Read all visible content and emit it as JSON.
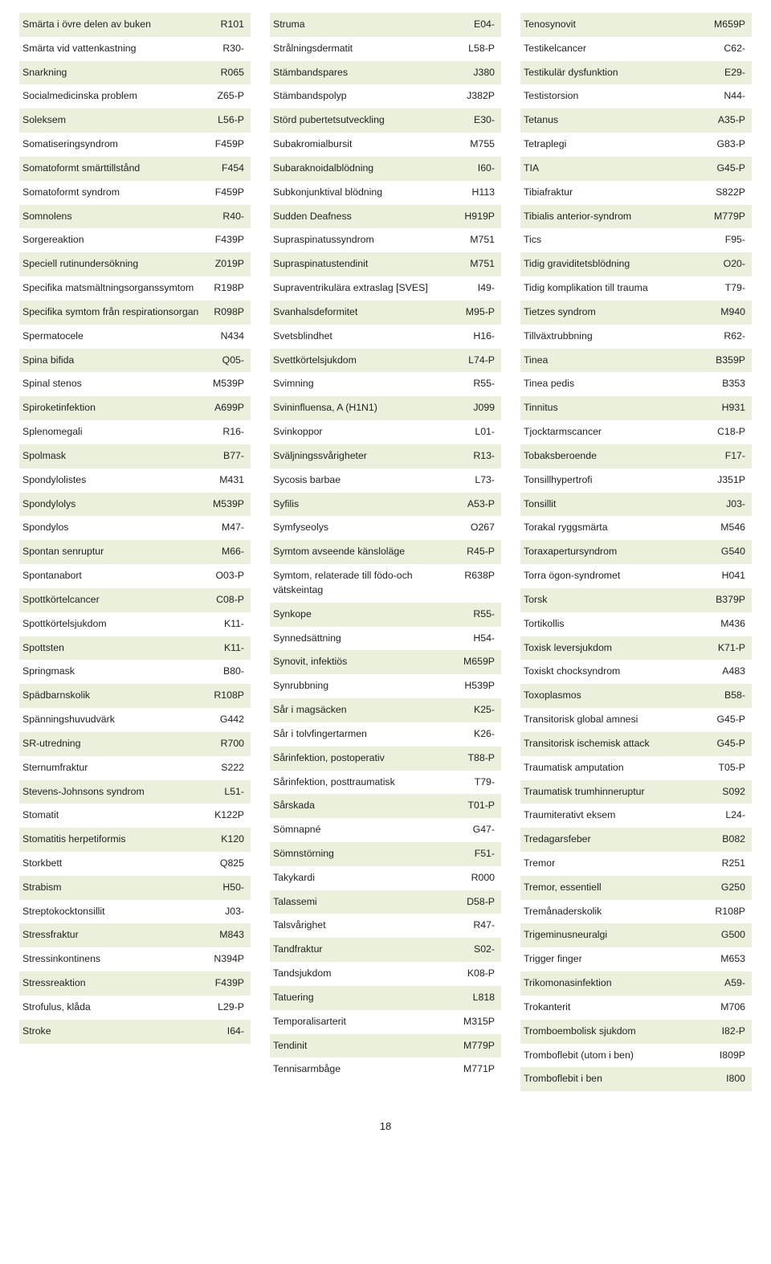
{
  "rowColors": {
    "even": "#eaf0db",
    "odd": "#ffffff"
  },
  "textColor": "#222222",
  "fontSize": 12.3,
  "pageNumber": "18",
  "columns": [
    [
      {
        "term": "Smärta i övre delen av buken",
        "code": "R101"
      },
      {
        "term": "Smärta vid vattenkastning",
        "code": "R30-"
      },
      {
        "term": "Snarkning",
        "code": "R065"
      },
      {
        "term": "Socialmedicinska problem",
        "code": "Z65-P"
      },
      {
        "term": "Soleksem",
        "code": "L56-P"
      },
      {
        "term": "Somatiseringsyndrom",
        "code": "F459P"
      },
      {
        "term": "Somatoformt smärttillstånd",
        "code": "F454"
      },
      {
        "term": "Somatoformt syndrom",
        "code": "F459P"
      },
      {
        "term": "Somnolens",
        "code": "R40-"
      },
      {
        "term": "Sorgereaktion",
        "code": "F439P"
      },
      {
        "term": "Speciell rutinundersökning",
        "code": "Z019P"
      },
      {
        "term": "Specifika matsmältningsorganssymtom",
        "code": "R198P"
      },
      {
        "term": "Specifika symtom från respirationsorgan",
        "code": "R098P"
      },
      {
        "term": "Spermatocele",
        "code": "N434"
      },
      {
        "term": "Spina bifida",
        "code": "Q05-"
      },
      {
        "term": "Spinal stenos",
        "code": "M539P"
      },
      {
        "term": "Spiroketinfektion",
        "code": "A699P"
      },
      {
        "term": "Splenomegali",
        "code": "R16-"
      },
      {
        "term": "Spolmask",
        "code": "B77-"
      },
      {
        "term": "Spondylolistes",
        "code": "M431"
      },
      {
        "term": "Spondylolys",
        "code": "M539P"
      },
      {
        "term": "Spondylos",
        "code": "M47-"
      },
      {
        "term": "Spontan senruptur",
        "code": "M66-"
      },
      {
        "term": "Spontanabort",
        "code": "O03-P"
      },
      {
        "term": "Spottkörtelcancer",
        "code": "C08-P"
      },
      {
        "term": "Spottkörtelsjukdom",
        "code": "K11-"
      },
      {
        "term": "Spottsten",
        "code": "K11-"
      },
      {
        "term": "Springmask",
        "code": "B80-"
      },
      {
        "term": "Spädbarnskolik",
        "code": "R108P"
      },
      {
        "term": "Spänningshuvudvärk",
        "code": "G442"
      },
      {
        "term": "SR-utredning",
        "code": "R700"
      },
      {
        "term": "Sternumfraktur",
        "code": "S222"
      },
      {
        "term": "Stevens-Johnsons syndrom",
        "code": "L51-"
      },
      {
        "term": "Stomatit",
        "code": "K122P"
      },
      {
        "term": "Stomatitis herpetiformis",
        "code": "K120"
      },
      {
        "term": "Storkbett",
        "code": "Q825"
      },
      {
        "term": "Strabism",
        "code": "H50-"
      },
      {
        "term": "Streptokocktonsillit",
        "code": "J03-"
      },
      {
        "term": "Stressfraktur",
        "code": "M843"
      },
      {
        "term": "Stressinkontinens",
        "code": "N394P"
      },
      {
        "term": "Stressreaktion",
        "code": "F439P"
      },
      {
        "term": "Strofulus, klåda",
        "code": "L29-P"
      },
      {
        "term": "Stroke",
        "code": "I64-"
      }
    ],
    [
      {
        "term": "Struma",
        "code": "E04-"
      },
      {
        "term": "Strålningsdermatit",
        "code": "L58-P"
      },
      {
        "term": "Stämbandspares",
        "code": "J380"
      },
      {
        "term": "Stämbandspolyp",
        "code": "J382P"
      },
      {
        "term": "Störd pubertetsutveckling",
        "code": "E30-"
      },
      {
        "term": "Subakromialbursit",
        "code": "M755"
      },
      {
        "term": "Subaraknoidalblödning",
        "code": "I60-"
      },
      {
        "term": "Subkonjunktival blödning",
        "code": "H113"
      },
      {
        "term": "Sudden Deafness",
        "code": "H919P"
      },
      {
        "term": "Supraspinatussyndrom",
        "code": "M751"
      },
      {
        "term": "Supraspinatustendinit",
        "code": "M751"
      },
      {
        "term": "Supraventrikulära extraslag [SVES]",
        "code": "I49-"
      },
      {
        "term": "Svanhalsdeformitet",
        "code": "M95-P"
      },
      {
        "term": "Svetsblindhet",
        "code": "H16-"
      },
      {
        "term": "Svettkörtelsjukdom",
        "code": "L74-P"
      },
      {
        "term": "Svimning",
        "code": "R55-"
      },
      {
        "term": "Svininfluensa, A (H1N1)",
        "code": "J099"
      },
      {
        "term": "Svinkoppor",
        "code": "L01-"
      },
      {
        "term": "Sväljningssvårigheter",
        "code": "R13-"
      },
      {
        "term": "Sycosis barbae",
        "code": "L73-"
      },
      {
        "term": "Syfilis",
        "code": "A53-P"
      },
      {
        "term": "Symfyseolys",
        "code": "O267"
      },
      {
        "term": "Symtom avseende känsloläge",
        "code": "R45-P"
      },
      {
        "term": "Symtom, relaterade till födo-och vätskeintag",
        "code": "R638P"
      },
      {
        "term": "Synkope",
        "code": "R55-"
      },
      {
        "term": "Synnedsättning",
        "code": "H54-"
      },
      {
        "term": "Synovit, infektiös",
        "code": "M659P"
      },
      {
        "term": "Synrubbning",
        "code": "H539P"
      },
      {
        "term": "Sår i magsäcken",
        "code": "K25-"
      },
      {
        "term": "Sår i tolvfingertarmen",
        "code": "K26-"
      },
      {
        "term": "Sårinfektion, postoperativ",
        "code": "T88-P"
      },
      {
        "term": "Sårinfektion, posttraumatisk",
        "code": "T79-"
      },
      {
        "term": "Sårskada",
        "code": "T01-P"
      },
      {
        "term": "Sömnapné",
        "code": "G47-"
      },
      {
        "term": "Sömnstörning",
        "code": "F51-"
      },
      {
        "term": "Takykardi",
        "code": "R000"
      },
      {
        "term": "Talassemi",
        "code": "D58-P"
      },
      {
        "term": "Talsvårighet",
        "code": "R47-"
      },
      {
        "term": "Tandfraktur",
        "code": "S02-"
      },
      {
        "term": "Tandsjukdom",
        "code": "K08-P"
      },
      {
        "term": "Tatuering",
        "code": "L818"
      },
      {
        "term": "Temporalisarterit",
        "code": "M315P"
      },
      {
        "term": "Tendinit",
        "code": "M779P"
      },
      {
        "term": "Tennisarmbåge",
        "code": "M771P"
      }
    ],
    [
      {
        "term": "Tenosynovit",
        "code": "M659P"
      },
      {
        "term": "Testikelcancer",
        "code": "C62-"
      },
      {
        "term": "Testikulär dysfunktion",
        "code": "E29-"
      },
      {
        "term": "Testistorsion",
        "code": "N44-"
      },
      {
        "term": "Tetanus",
        "code": "A35-P"
      },
      {
        "term": "Tetraplegi",
        "code": "G83-P"
      },
      {
        "term": "TIA",
        "code": "G45-P"
      },
      {
        "term": "Tibiafraktur",
        "code": "S822P"
      },
      {
        "term": "Tibialis anterior-syndrom",
        "code": "M779P"
      },
      {
        "term": "Tics",
        "code": "F95-"
      },
      {
        "term": "Tidig graviditetsblödning",
        "code": "O20-"
      },
      {
        "term": "Tidig komplikation till trauma",
        "code": "T79-"
      },
      {
        "term": "Tietzes syndrom",
        "code": "M940"
      },
      {
        "term": "Tillväxtrubbning",
        "code": "R62-"
      },
      {
        "term": "Tinea",
        "code": "B359P"
      },
      {
        "term": "Tinea pedis",
        "code": "B353"
      },
      {
        "term": "Tinnitus",
        "code": "H931"
      },
      {
        "term": "Tjocktarmscancer",
        "code": "C18-P"
      },
      {
        "term": "Tobaksberoende",
        "code": "F17-"
      },
      {
        "term": "Tonsillhypertrofi",
        "code": "J351P"
      },
      {
        "term": "Tonsillit",
        "code": "J03-"
      },
      {
        "term": "Torakal ryggsmärta",
        "code": "M546"
      },
      {
        "term": "Toraxapertursyndrom",
        "code": "G540"
      },
      {
        "term": "Torra ögon-syndromet",
        "code": "H041"
      },
      {
        "term": "Torsk",
        "code": "B379P"
      },
      {
        "term": "Tortikollis",
        "code": "M436"
      },
      {
        "term": "Toxisk leversjukdom",
        "code": "K71-P"
      },
      {
        "term": "Toxiskt chocksyndrom",
        "code": "A483"
      },
      {
        "term": "Toxoplasmos",
        "code": "B58-"
      },
      {
        "term": "Transitorisk global amnesi",
        "code": "G45-P"
      },
      {
        "term": "Transitorisk ischemisk attack",
        "code": "G45-P"
      },
      {
        "term": "Traumatisk amputation",
        "code": "T05-P"
      },
      {
        "term": "Traumatisk trumhinneruptur",
        "code": "S092"
      },
      {
        "term": "Traumiterativt eksem",
        "code": "L24-"
      },
      {
        "term": "Tredagarsfeber",
        "code": "B082"
      },
      {
        "term": "Tremor",
        "code": "R251"
      },
      {
        "term": "Tremor, essentiell",
        "code": "G250"
      },
      {
        "term": "Tremånaderskolik",
        "code": "R108P"
      },
      {
        "term": "Trigeminusneuralgi",
        "code": "G500"
      },
      {
        "term": "Trigger finger",
        "code": "M653"
      },
      {
        "term": "Trikomonasinfektion",
        "code": "A59-"
      },
      {
        "term": "Trokanterit",
        "code": "M706"
      },
      {
        "term": "Tromboembolisk sjukdom",
        "code": "I82-P"
      },
      {
        "term": "Tromboflebit (utom i ben)",
        "code": "I809P"
      },
      {
        "term": "Tromboflebit i ben",
        "code": "I800"
      }
    ]
  ]
}
